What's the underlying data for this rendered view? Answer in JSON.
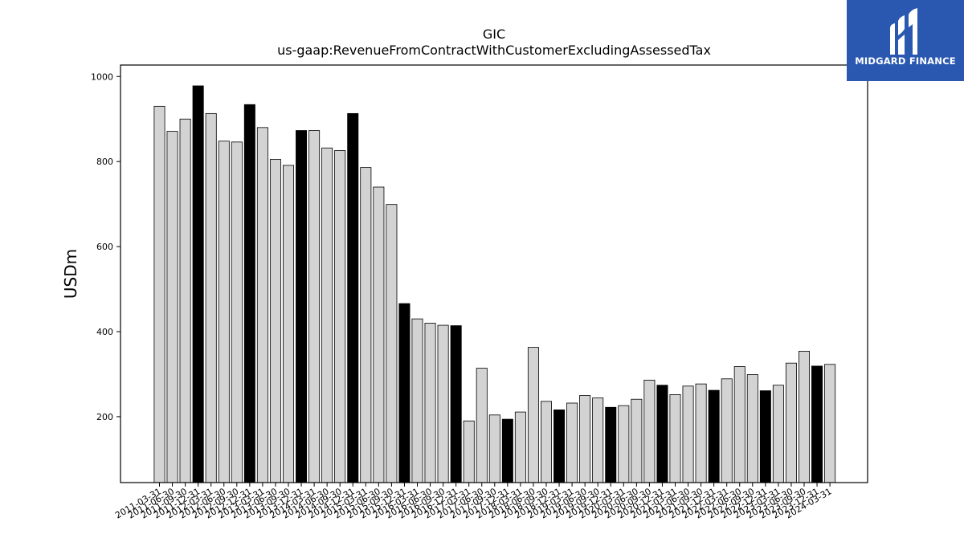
{
  "logo": {
    "text": "MIDGARD FINANCE",
    "icon": "midgard-logo-icon",
    "color": "#2a58b0"
  },
  "chart_data": {
    "type": "bar",
    "title": "GIC",
    "subtitle": "us-gaap:RevenueFromContractWithCustomerExcludingAssessedTax",
    "xlabel": "",
    "ylabel": "USDm",
    "ylim": [
      45,
      1027
    ],
    "yticks": [
      200,
      400,
      600,
      800,
      1000
    ],
    "grid": false,
    "colors": {
      "quarter": "#d3d3d3",
      "year_end": "#000000",
      "edge": "#000000"
    },
    "categories": [
      "2011-03-31",
      "2011-06-30",
      "2011-09-30",
      "2011-12-31",
      "2012-03-31",
      "2012-06-30",
      "2012-09-30",
      "2012-12-31",
      "2013-03-31",
      "2013-06-30",
      "2013-09-30",
      "2013-12-31",
      "2014-03-31",
      "2014-06-30",
      "2014-09-30",
      "2014-12-31",
      "2015-03-31",
      "2015-06-30",
      "2015-09-30",
      "2015-12-31",
      "2016-03-31",
      "2016-06-30",
      "2016-09-30",
      "2016-12-31",
      "2017-03-31",
      "2017-06-30",
      "2017-09-30",
      "2017-12-31",
      "2018-03-31",
      "2018-06-30",
      "2018-09-30",
      "2018-12-31",
      "2019-03-31",
      "2019-06-30",
      "2019-09-30",
      "2019-12-31",
      "2020-03-31",
      "2020-06-30",
      "2020-09-30",
      "2020-12-31",
      "2021-03-31",
      "2021-06-30",
      "2021-09-30",
      "2021-12-31",
      "2022-03-31",
      "2022-06-30",
      "2022-09-30",
      "2022-12-31",
      "2023-03-31",
      "2023-06-30",
      "2023-09-30",
      "2023-12-31",
      "2024-03-31"
    ],
    "values": [
      930,
      871,
      900,
      978,
      913,
      848,
      846,
      934,
      880,
      805,
      791,
      873,
      873,
      832,
      826,
      913,
      786,
      740,
      699,
      466,
      430,
      420,
      415,
      414,
      190,
      314,
      204,
      194,
      211,
      363,
      236,
      216,
      232,
      250,
      244,
      222,
      226,
      241,
      286,
      274,
      252,
      272,
      277,
      262,
      289,
      318,
      299,
      261,
      274,
      326,
      354,
      319,
      323
    ],
    "highlight_indices": [
      3,
      7,
      11,
      15,
      19,
      23,
      27,
      31,
      35,
      39,
      43,
      47,
      51
    ]
  }
}
